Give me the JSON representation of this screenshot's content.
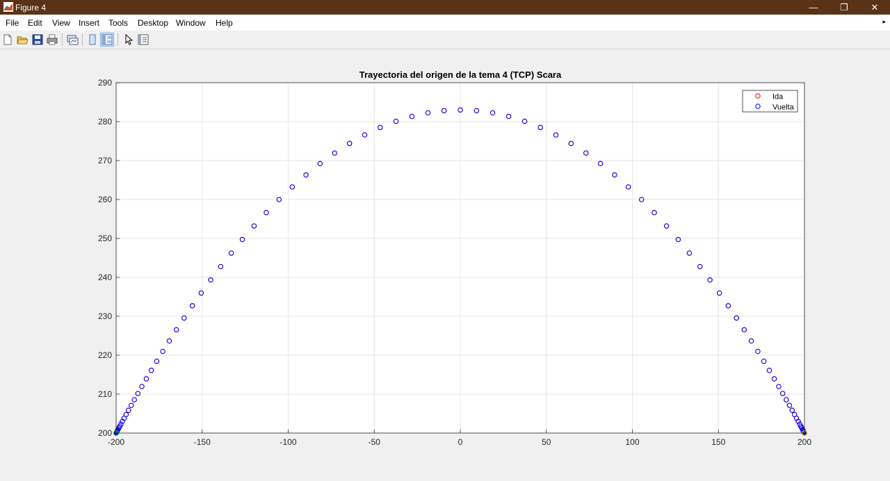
{
  "window": {
    "title": "Figure 4",
    "controls": [
      "—",
      "❐",
      "✕"
    ]
  },
  "menubar": {
    "items": [
      "File",
      "Edit",
      "View",
      "Insert",
      "Tools",
      "Desktop",
      "Window",
      "Help"
    ],
    "overflow": "▸"
  },
  "toolbar": {
    "icons": [
      "new-figure-icon",
      "open-file-icon",
      "save-icon",
      "print-icon",
      "link-plot-icon",
      "hide-plot-tools-icon",
      "show-plot-tools-icon",
      "edit-plot-icon",
      "property-inspector-icon"
    ]
  },
  "chart_data": {
    "type": "scatter",
    "title": "Trayectoria del origen de la tema 4 (TCP) Scara",
    "xlabel": "",
    "ylabel": "",
    "xlim": [
      -200,
      200
    ],
    "ylim": [
      200,
      290
    ],
    "xticks": [
      "-200",
      "-150",
      "-100",
      "-50",
      "0",
      "50",
      "100",
      "150",
      "200"
    ],
    "yticks": [
      "200",
      "210",
      "220",
      "230",
      "240",
      "250",
      "260",
      "270",
      "280",
      "290"
    ],
    "grid": true,
    "legend_position": "top-right",
    "series": [
      {
        "name": "Ida",
        "color": "#ff0000",
        "marker": "circle-open",
        "n_points": 101,
        "x_range": [
          -200,
          200
        ],
        "peak_y": 283
      },
      {
        "name": "Vuelta",
        "color": "#0000ff",
        "marker": "circle-open",
        "n_points": 101,
        "x_range": [
          -200,
          200
        ],
        "peak_y": 283
      }
    ],
    "start_marker_color": "#00c000",
    "end_marker_color": "#e0c000"
  }
}
